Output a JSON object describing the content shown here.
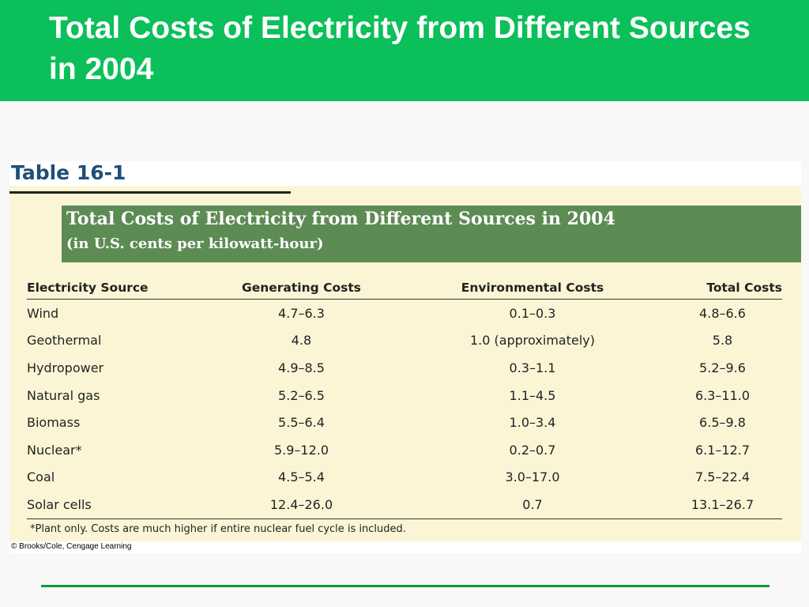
{
  "slide": {
    "title": "Total Costs of Electricity from Different Sources in 2004",
    "credit": "© Brooks/Cole, Cengage Learning"
  },
  "table": {
    "number": "Table 16-1",
    "caption_title": "Total Costs of Electricity from Different Sources in 2004",
    "caption_subtitle": "(in U.S. cents per kilowatt-hour)",
    "headers": [
      "Electricity Source",
      "Generating Costs",
      "Environmental Costs",
      "Total Costs"
    ],
    "rows": [
      [
        "Wind",
        "4.7–6.3",
        "0.1–0.3",
        "4.8–6.6"
      ],
      [
        "Geothermal",
        "4.8",
        "1.0 (approximately)",
        "5.8"
      ],
      [
        "Hydropower",
        "4.9–8.5",
        "0.3–1.1",
        "5.2–9.6"
      ],
      [
        "Natural gas",
        "5.2–6.5",
        "1.1–4.5",
        "6.3–11.0"
      ],
      [
        "Biomass",
        "5.5–6.4",
        "1.0–3.4",
        "6.5–9.8"
      ],
      [
        "Nuclear*",
        "5.9–12.0",
        "0.2–0.7",
        "6.1–12.7"
      ],
      [
        "Coal",
        "4.5–5.4",
        "3.0–17.0",
        "7.5–22.4"
      ],
      [
        "Solar cells",
        "12.4–26.0",
        "0.7",
        "13.1–26.7"
      ]
    ],
    "footnote": "*Plant only. Costs are much higher if entire nuclear fuel cycle is included."
  },
  "colors": {
    "header_green": "#0bbf5a",
    "caption_green": "#5d8b54",
    "table_background": "#fbf5d6",
    "table_number_blue": "#1f4e79",
    "rule_green": "#0a9a3e"
  }
}
